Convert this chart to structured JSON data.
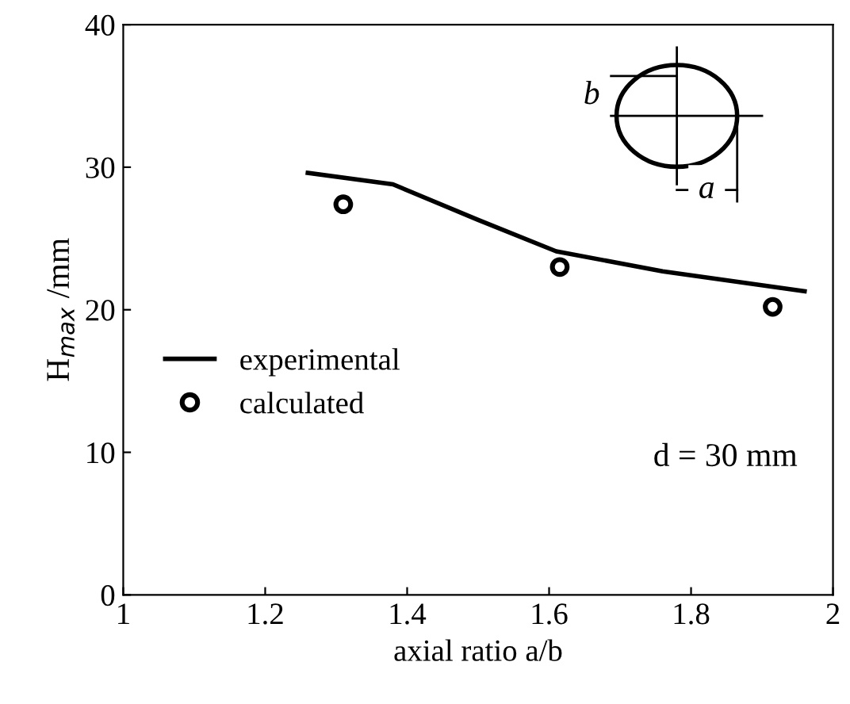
{
  "chart_data": {
    "type": "line",
    "xlabel": "axial ratio a/b",
    "ylabel": "H$_{max}$ /mm",
    "xlim": [
      1,
      2
    ],
    "xticks": [
      1,
      1.2,
      1.4,
      1.6,
      1.8,
      2
    ],
    "ylim": [
      0,
      40
    ],
    "yticks": [
      0,
      10,
      20,
      30,
      40
    ],
    "grid": false,
    "legend": "left",
    "series": [
      {
        "name": "experimental",
        "color": "#000000",
        "marker": "none",
        "line_style": "solid",
        "x": [
          1.26,
          1.38,
          1.5,
          1.61,
          1.76,
          1.96
        ],
        "values": [
          29.6,
          28.8,
          26.3,
          24.1,
          22.7,
          21.3
        ]
      },
      {
        "name": "calculated",
        "type": "scatter",
        "color": "#000000",
        "marker": "circle",
        "x": [
          1.31,
          1.615,
          1.915
        ],
        "values": [
          27.4,
          23.0,
          20.2
        ]
      }
    ],
    "annotations": [
      "d = 30 mm",
      "a",
      "b"
    ]
  }
}
